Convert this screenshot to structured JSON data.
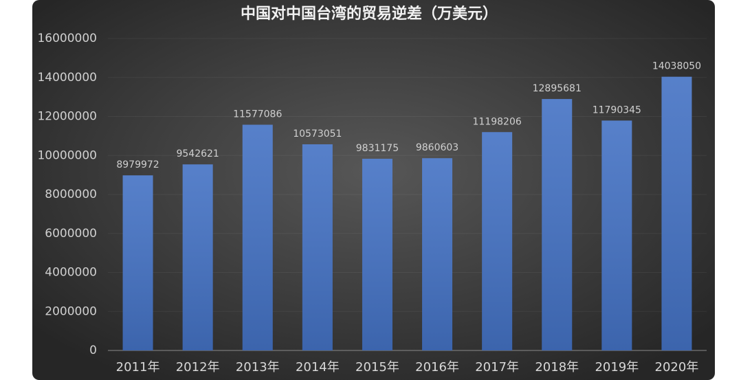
{
  "chart_data": {
    "type": "bar",
    "title": "中国对中国台湾的贸易逆差（万美元）",
    "categories": [
      "2011年",
      "2012年",
      "2013年",
      "2014年",
      "2015年",
      "2016年",
      "2017年",
      "2018年",
      "2019年",
      "2020年"
    ],
    "values": [
      8979972,
      9542621,
      11577086,
      10573051,
      9831175,
      9860603,
      11198206,
      12895681,
      11790345,
      14038050
    ],
    "color": "#4472c4",
    "ylim": [
      0,
      16000000
    ],
    "yticks": [
      0,
      2000000,
      4000000,
      6000000,
      8000000,
      10000000,
      12000000,
      14000000,
      16000000
    ],
    "grid": true
  }
}
